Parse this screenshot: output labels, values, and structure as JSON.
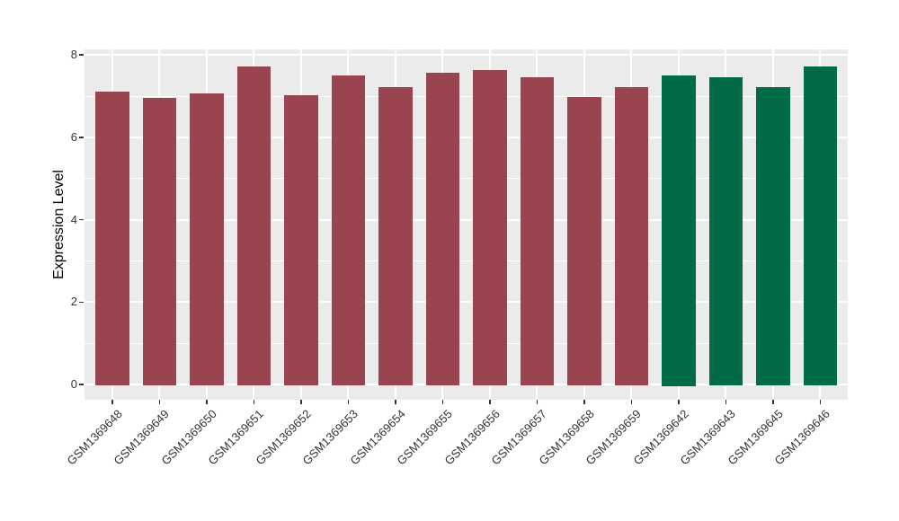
{
  "chart_data": {
    "type": "bar",
    "title": "",
    "xlabel": "",
    "ylabel": "Expression Level",
    "ylim": [
      0,
      8
    ],
    "yticks_major": [
      0,
      2,
      4,
      6,
      8
    ],
    "yticks_minor": [
      1,
      3,
      5,
      7
    ],
    "grid": true,
    "legend": "none",
    "panel_bg": "#EBEBEB",
    "grid_color": "#FFFFFF",
    "categories": [
      "GSM1369648",
      "GSM1369649",
      "GSM1369650",
      "GSM1369651",
      "GSM1369652",
      "GSM1369653",
      "GSM1369654",
      "GSM1369655",
      "GSM1369656",
      "GSM1369657",
      "GSM1369658",
      "GSM1369659",
      "GSM1369642",
      "GSM1369643",
      "GSM1369645",
      "GSM1369646"
    ],
    "values": [
      7.1,
      6.96,
      7.06,
      7.72,
      7.03,
      7.51,
      7.21,
      7.57,
      7.63,
      7.45,
      6.99,
      7.21,
      7.5,
      7.45,
      7.23,
      7.73
    ],
    "bar_groups": [
      "red",
      "red",
      "red",
      "red",
      "red",
      "red",
      "red",
      "red",
      "red",
      "red",
      "red",
      "red",
      "green",
      "green",
      "green",
      "green"
    ],
    "colors": {
      "red": "#9A4450",
      "green": "#006B45"
    }
  }
}
